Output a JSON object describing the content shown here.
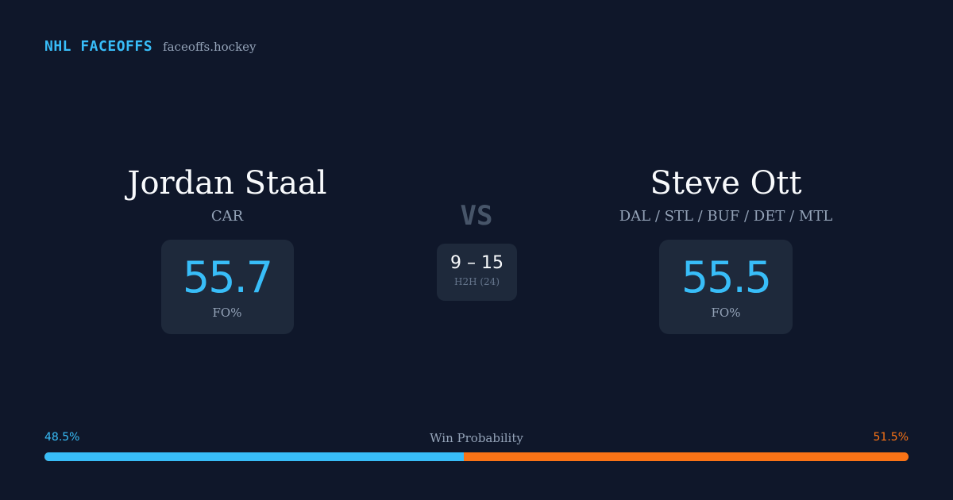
{
  "brand": {
    "name": "NHL FACEOFFS",
    "site": "faceoffs.hockey"
  },
  "player_left": {
    "name": "Jordan Staal",
    "team": "CAR",
    "fo_value": "55.7",
    "fo_label": "FO%"
  },
  "player_right": {
    "name": "Steve Ott",
    "team": "DAL / STL / BUF / DET / MTL",
    "fo_value": "55.5",
    "fo_label": "FO%"
  },
  "versus": {
    "label": "VS",
    "record": "9 – 15",
    "h2h_label": "H2H (24)"
  },
  "win_probability": {
    "title": "Win Probability",
    "left_label": "48.5%",
    "right_label": "51.5%",
    "left_fraction": 0.485,
    "right_fraction": 0.515
  },
  "colors": {
    "left": "#38bdf8",
    "right": "#f97316",
    "background": "#0f172a",
    "card": "#1e293b"
  }
}
